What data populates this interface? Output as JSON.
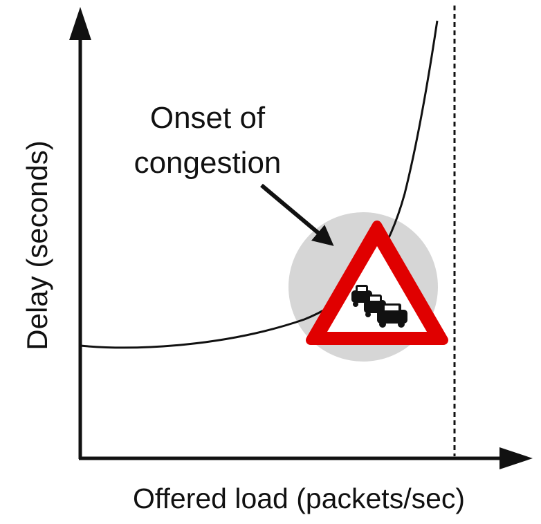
{
  "annotation": {
    "lines": [
      "Onset of",
      "congestion"
    ]
  },
  "y_axis": {
    "label": "Delay (seconds)"
  },
  "x_axis": {
    "label": "Offered load (packets/sec)"
  }
}
